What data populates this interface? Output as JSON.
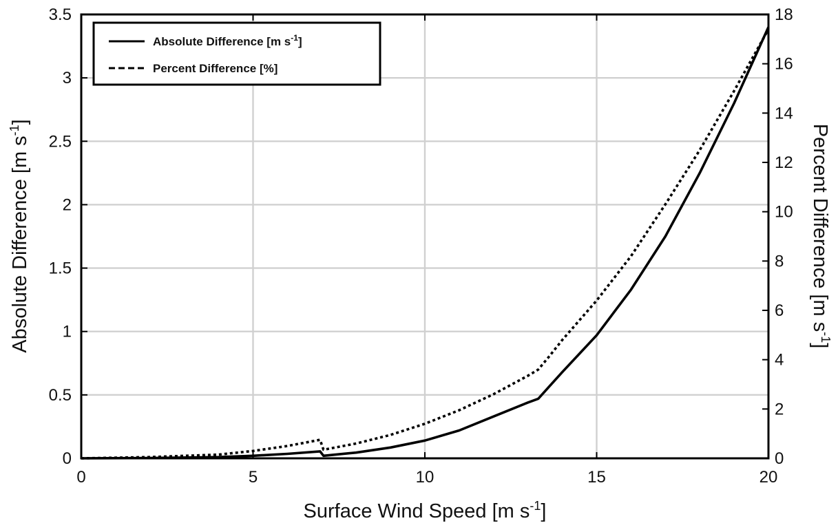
{
  "chart_data": {
    "type": "line",
    "xlabel_main": "Surface Wind Speed [m s",
    "xlabel_sup": "-1",
    "xlabel_tail": "]",
    "ylabel_main": "Absolute Difference [m s",
    "ylabel_sup": "-1",
    "ylabel_tail": "]",
    "y2label_main": "Percent Difference [m s",
    "y2label_sup": "-1",
    "y2label_tail": "]",
    "xlim": [
      0,
      20
    ],
    "ylim": [
      0,
      3.5
    ],
    "y2lim": [
      0,
      18
    ],
    "xticks": [
      "0",
      "5",
      "10",
      "15",
      "20"
    ],
    "yticks": [
      "0",
      "0.5",
      "1",
      "1.5",
      "2",
      "2.5",
      "3",
      "3.5"
    ],
    "y2ticks": [
      "0",
      "2",
      "4",
      "6",
      "8",
      "10",
      "12",
      "14",
      "16",
      "18"
    ],
    "grid": true,
    "legend_position": "top-left",
    "legend": {
      "abs_main": "Absolute Difference [m s",
      "abs_sup": "-1",
      "abs_tail": "]",
      "pct_label": "Percent Difference [%]"
    },
    "series": [
      {
        "name": "Absolute Difference [m s-1]",
        "axis": "left",
        "style": "solid",
        "color": "#000000",
        "x": [
          0,
          2,
          4,
          5,
          6,
          6.95,
          7.05,
          8,
          9,
          10,
          11,
          12,
          13,
          13.3,
          13.6,
          14,
          15,
          16,
          17,
          18,
          19,
          20
        ],
        "y": [
          0,
          0.002,
          0.01,
          0.02,
          0.035,
          0.055,
          0.02,
          0.045,
          0.085,
          0.14,
          0.22,
          0.33,
          0.44,
          0.47,
          0.56,
          0.68,
          0.97,
          1.33,
          1.75,
          2.25,
          2.8,
          3.4
        ]
      },
      {
        "name": "Percent Difference [%]",
        "axis": "right",
        "style": "dotted",
        "color": "#000000",
        "x": [
          0,
          2,
          4,
          5,
          6,
          6.95,
          7.05,
          8,
          9,
          10,
          11,
          12,
          13,
          13.3,
          13.6,
          14,
          15,
          16,
          17,
          18,
          19,
          20
        ],
        "y": [
          0,
          0.05,
          0.15,
          0.3,
          0.5,
          0.75,
          0.35,
          0.6,
          0.95,
          1.4,
          1.95,
          2.6,
          3.35,
          3.6,
          4.1,
          4.8,
          6.4,
          8.2,
          10.3,
          12.5,
          14.9,
          17.4
        ]
      }
    ]
  }
}
